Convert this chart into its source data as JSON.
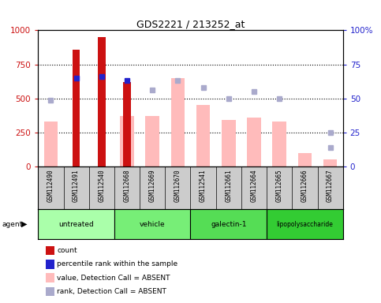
{
  "title": "GDS2221 / 213252_at",
  "samples": [
    "GSM112490",
    "GSM112491",
    "GSM112540",
    "GSM112668",
    "GSM112669",
    "GSM112670",
    "GSM112541",
    "GSM112661",
    "GSM112664",
    "GSM112665",
    "GSM112666",
    "GSM112667"
  ],
  "groups": [
    {
      "label": "untreated",
      "color": "#aaffaa",
      "start": 0,
      "end": 3
    },
    {
      "label": "vehicle",
      "color": "#77ee77",
      "start": 3,
      "end": 6
    },
    {
      "label": "galectin-1",
      "color": "#55dd55",
      "start": 6,
      "end": 9
    },
    {
      "label": "lipopolysaccharide",
      "color": "#33cc33",
      "start": 9,
      "end": 12
    }
  ],
  "count_values": [
    null,
    860,
    950,
    620,
    null,
    null,
    null,
    null,
    null,
    null,
    null,
    null
  ],
  "count_color": "#cc1111",
  "rank_values": [
    null,
    650,
    660,
    630,
    null,
    null,
    null,
    null,
    null,
    null,
    null,
    null
  ],
  "rank_color": "#2222cc",
  "absent_value": [
    330,
    null,
    null,
    370,
    370,
    650,
    455,
    340,
    360,
    330,
    100,
    55
  ],
  "absent_rank": [
    490,
    null,
    null,
    null,
    560,
    630,
    580,
    500,
    550,
    500,
    null,
    250
  ],
  "absent_rank2": [
    null,
    null,
    null,
    null,
    null,
    null,
    null,
    null,
    null,
    null,
    null,
    140
  ],
  "absent_value_color": "#ffbbbb",
  "absent_rank_color": "#aaaacc",
  "ylim_left": [
    0,
    1000
  ],
  "ylim_right": [
    0,
    100
  ],
  "yticks_left": [
    0,
    250,
    500,
    750,
    1000
  ],
  "yticks_right": [
    0,
    25,
    50,
    75,
    100
  ],
  "ylabel_left_color": "#cc1111",
  "ylabel_right_color": "#2222cc",
  "background_color": "#ffffff",
  "sample_bg": "#cccccc",
  "agent_label": "agent"
}
